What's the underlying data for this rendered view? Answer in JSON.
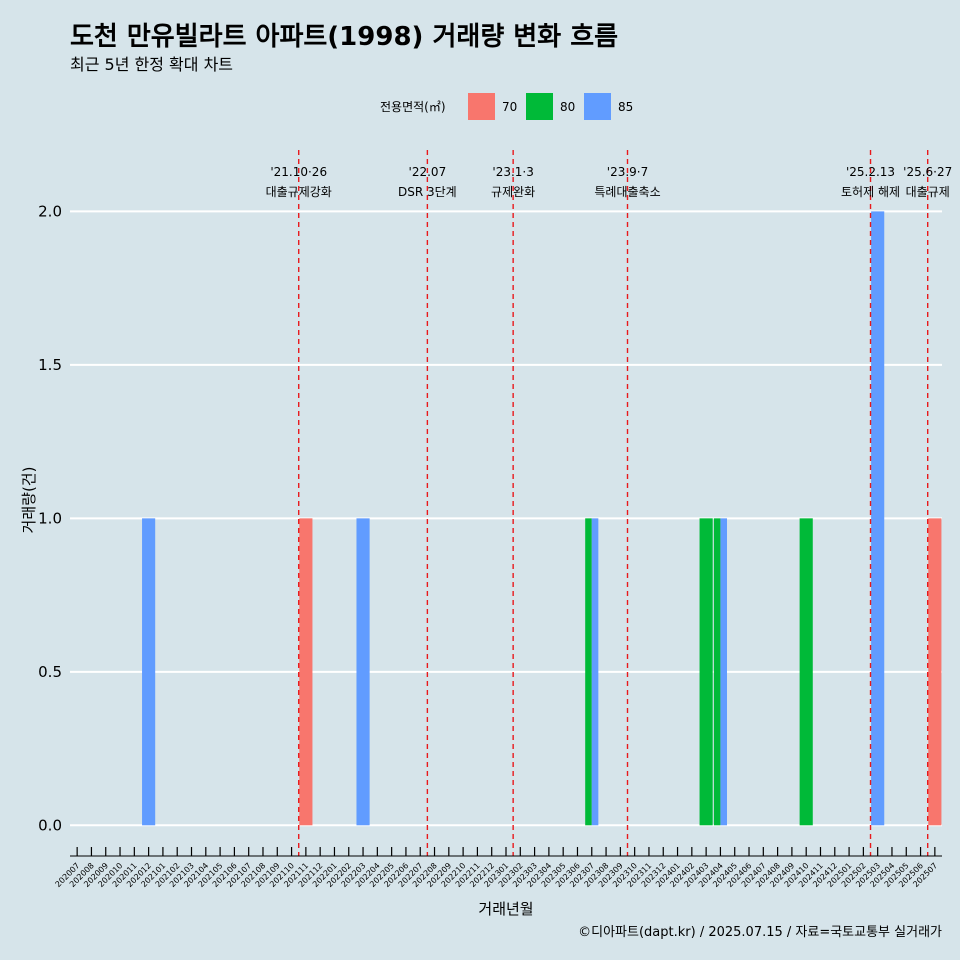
{
  "chart_data": {
    "type": "bar",
    "title": "도천 만유빌라트 아파트(1998) 거래량 변화 흐름",
    "subtitle": "최근 5년 한정 확대 차트",
    "xlabel": "거래년월",
    "ylabel": "거래량(건)",
    "ylim": [
      -0.1,
      2.2
    ],
    "yticks": [
      "0.0",
      "0.5",
      "1.0",
      "1.5",
      "2.0"
    ],
    "grid": true,
    "legend": {
      "title": "전용면적(㎡)",
      "position": "top"
    },
    "categories": [
      "202007",
      "202008",
      "202009",
      "202010",
      "202011",
      "202012",
      "202101",
      "202102",
      "202103",
      "202104",
      "202105",
      "202106",
      "202107",
      "202108",
      "202109",
      "202110",
      "202111",
      "202112",
      "202201",
      "202202",
      "202203",
      "202204",
      "202205",
      "202206",
      "202207",
      "202208",
      "202209",
      "202210",
      "202211",
      "202212",
      "202301",
      "202302",
      "202303",
      "202304",
      "202305",
      "202306",
      "202307",
      "202308",
      "202309",
      "202310",
      "202311",
      "202312",
      "202401",
      "202402",
      "202403",
      "202404",
      "202405",
      "202406",
      "202407",
      "202408",
      "202409",
      "202410",
      "202411",
      "202412",
      "202501",
      "202502",
      "202503",
      "202504",
      "202505",
      "202506",
      "202507"
    ],
    "series": [
      {
        "name": "70",
        "color": "#f8766d",
        "points": [
          {
            "x": "202111",
            "y": 1
          },
          {
            "x": "202507",
            "y": 1
          }
        ]
      },
      {
        "name": "80",
        "color": "#00ba38",
        "points": [
          {
            "x": "202307",
            "y": 1
          },
          {
            "x": "202403",
            "y": 1
          },
          {
            "x": "202404",
            "y": 1
          },
          {
            "x": "202410",
            "y": 1
          }
        ]
      },
      {
        "name": "85",
        "color": "#619cff",
        "points": [
          {
            "x": "202012",
            "y": 1
          },
          {
            "x": "202203",
            "y": 1
          },
          {
            "x": "202307",
            "y": 1
          },
          {
            "x": "202404",
            "y": 1
          },
          {
            "x": "202503",
            "y": 2
          }
        ]
      }
    ],
    "annotations": [
      {
        "date": "'21.10·26",
        "label": "대출규제강화",
        "x": "202110"
      },
      {
        "date": "'22.07",
        "label": "DSR 3단계",
        "x": "202207"
      },
      {
        "date": "'23.1·3",
        "label": "규제완화",
        "x": "202301"
      },
      {
        "date": "'23.9·7",
        "label": "특례대출축소",
        "x": "202309"
      },
      {
        "date": "'25.2.13",
        "label": "토허제 해제",
        "x": "202502"
      },
      {
        "date": "'25.6·27",
        "label": "대출규제",
        "x": "202506"
      }
    ],
    "caption": "©디아파트(dapt.kr) / 2025.07.15 / 자료=국토교통부 실거래가"
  }
}
